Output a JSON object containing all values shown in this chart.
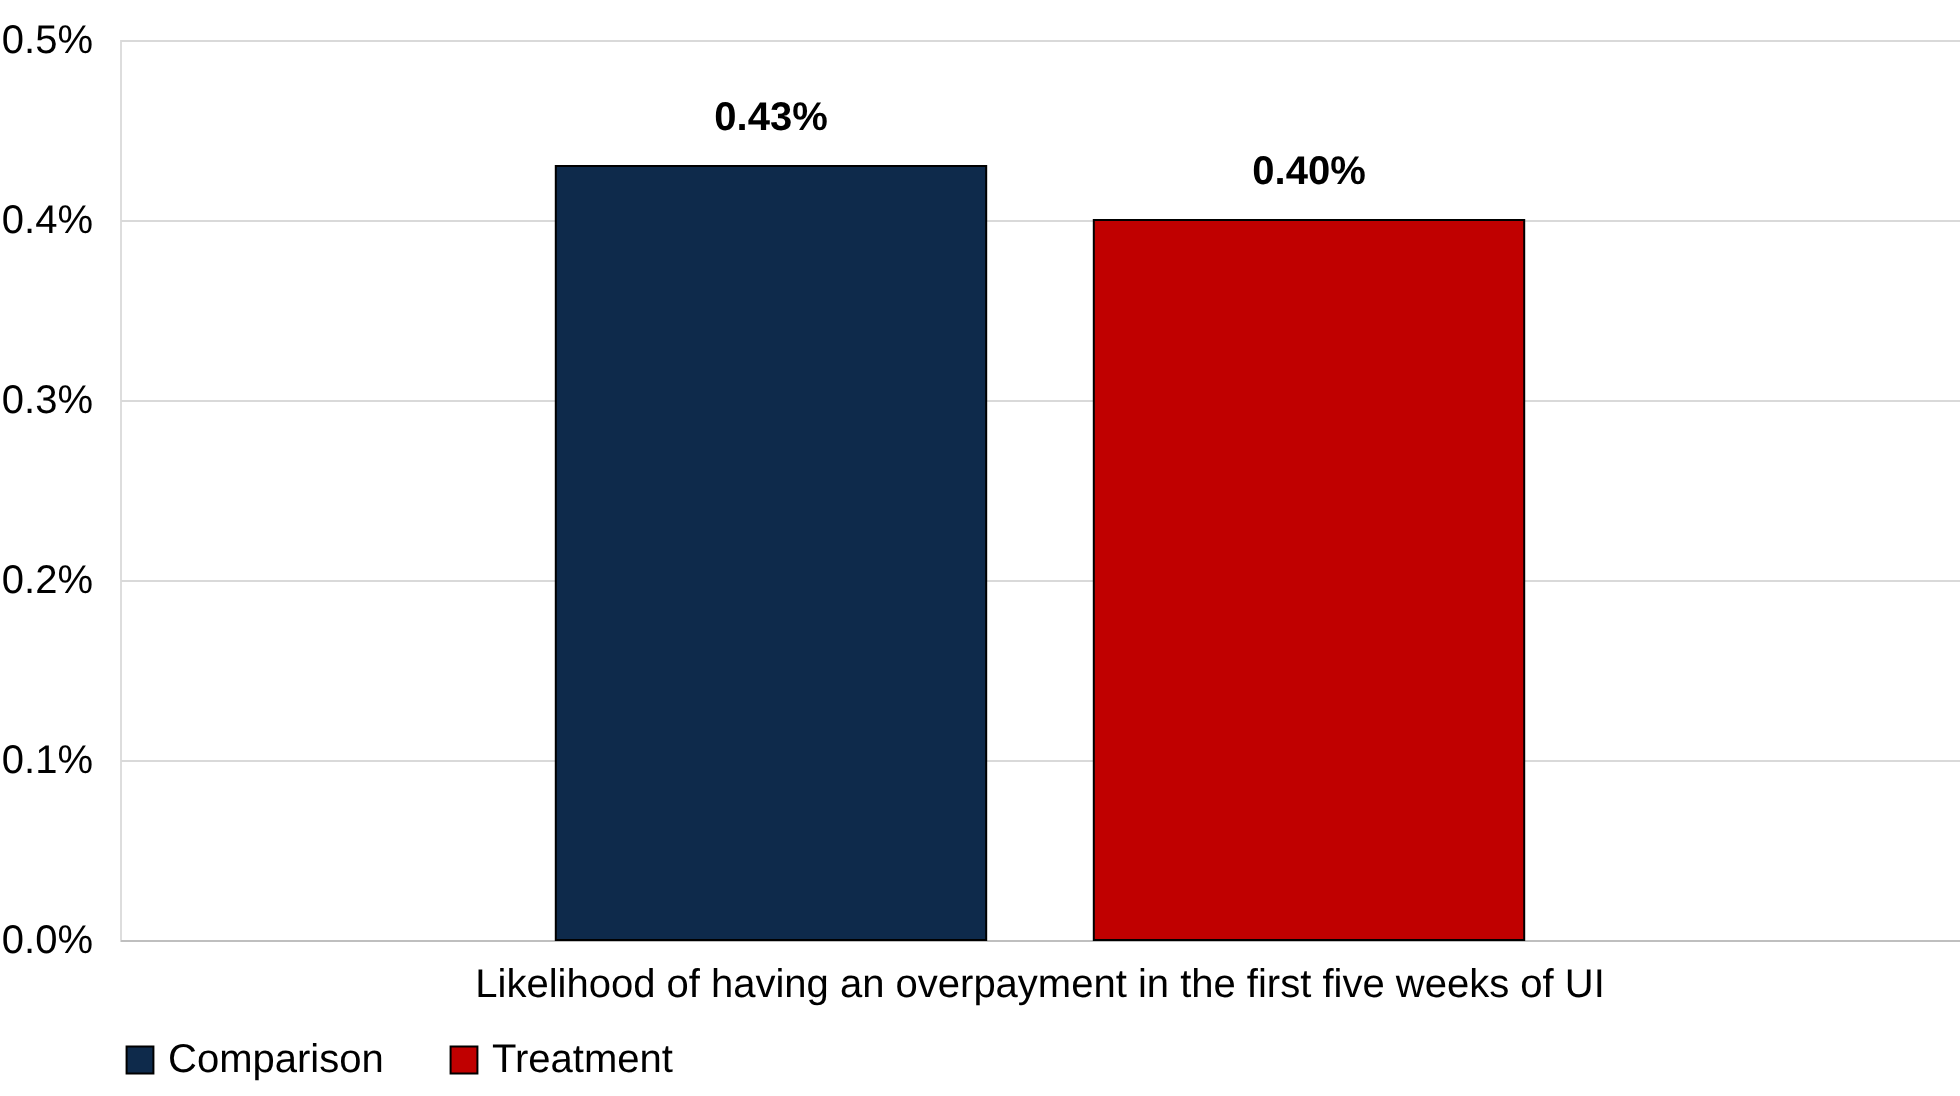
{
  "chart_data": {
    "type": "bar",
    "categories": [
      "Likelihood of having an overpayment in the first five weeks of UI"
    ],
    "series": [
      {
        "name": "Comparison",
        "color": "#0e2a4b",
        "values": [
          0.43
        ],
        "value_labels": [
          "0.43%"
        ]
      },
      {
        "name": "Treatment",
        "color": "#c00000",
        "values": [
          0.4
        ],
        "value_labels": [
          "0.40%"
        ]
      }
    ],
    "ylim": [
      0,
      0.5
    ],
    "yticks": [
      {
        "value": 0,
        "label": "0.0%"
      },
      {
        "value": 0.1,
        "label": "0.1%"
      },
      {
        "value": 0.2,
        "label": "0.2%"
      },
      {
        "value": 0.3,
        "label": "0.3%"
      },
      {
        "value": 0.4,
        "label": "0.4%"
      },
      {
        "value": 0.5,
        "label": "0.5%"
      }
    ],
    "grid": "y",
    "legend": "bottom"
  }
}
